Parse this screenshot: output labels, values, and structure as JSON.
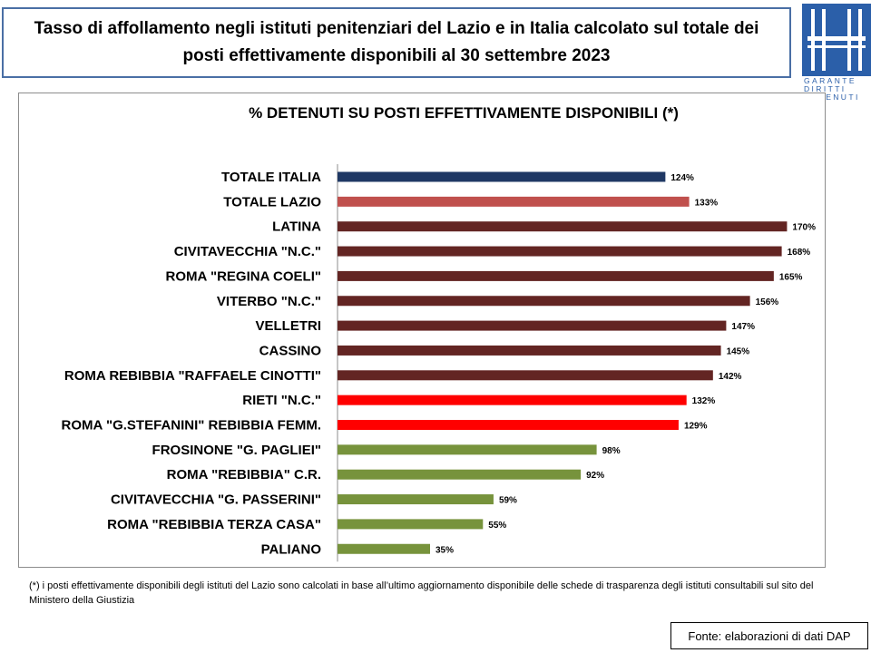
{
  "header": {
    "title": "Tasso di affollamento negli istituti penitenziari del Lazio e in Italia calcolato sul totale dei posti effettivamente disponibili al 30 settembre 2023"
  },
  "logo": {
    "lines": [
      "GARANTE",
      "DIRITTI",
      "DETENUTI"
    ],
    "color": "#2b5fa9"
  },
  "chart_data": {
    "type": "bar",
    "orientation": "horizontal",
    "title": "% DETENUTI SU POSTI EFFETTIVAMENTE DISPONIBILI (*)",
    "xlabel": "",
    "ylabel": "",
    "xlim": [
      0,
      175
    ],
    "grid": false,
    "legend": "none",
    "categories": [
      "TOTALE ITALIA",
      "TOTALE LAZIO",
      "LATINA",
      "CIVITAVECCHIA \"N.C.\"",
      "ROMA \"REGINA COELI\"",
      "VITERBO \"N.C.\"",
      "VELLETRI",
      "CASSINO",
      "ROMA REBIBBIA \"RAFFAELE CINOTTI\"",
      "RIETI \"N.C.\"",
      "ROMA \"G.STEFANINI\" REBIBBIA FEMM.",
      "FROSINONE \"G. PAGLIEI\"",
      "ROMA \"REBIBBIA\" C.R.",
      "CIVITAVECCHIA \"G. PASSERINI\"",
      "ROMA \"REBIBBIA TERZA CASA\"",
      "PALIANO"
    ],
    "values": [
      124,
      133,
      170,
      168,
      165,
      156,
      147,
      145,
      142,
      132,
      129,
      98,
      92,
      59,
      55,
      35
    ],
    "value_labels": [
      "124%",
      "133%",
      "170%",
      "168%",
      "165%",
      "156%",
      "147%",
      "145%",
      "142%",
      "132%",
      "129%",
      "98%",
      "92%",
      "59%",
      "55%",
      "35%"
    ],
    "colors": [
      "#1f3864",
      "#c0504d",
      "#632523",
      "#632523",
      "#632523",
      "#632523",
      "#632523",
      "#632523",
      "#632523",
      "#ff0000",
      "#ff0000",
      "#77933c",
      "#77933c",
      "#77933c",
      "#77933c",
      "#77933c"
    ]
  },
  "footnote": "(*) i posti effettivamente disponibili  degli istituti del Lazio sono  calcolati in base all’ultimo aggiornamento disponibile  delle schede di trasparenza degli istituti consultabili sul sito del Ministero della Giustizia",
  "source": "Fonte: elaborazioni di dati DAP"
}
